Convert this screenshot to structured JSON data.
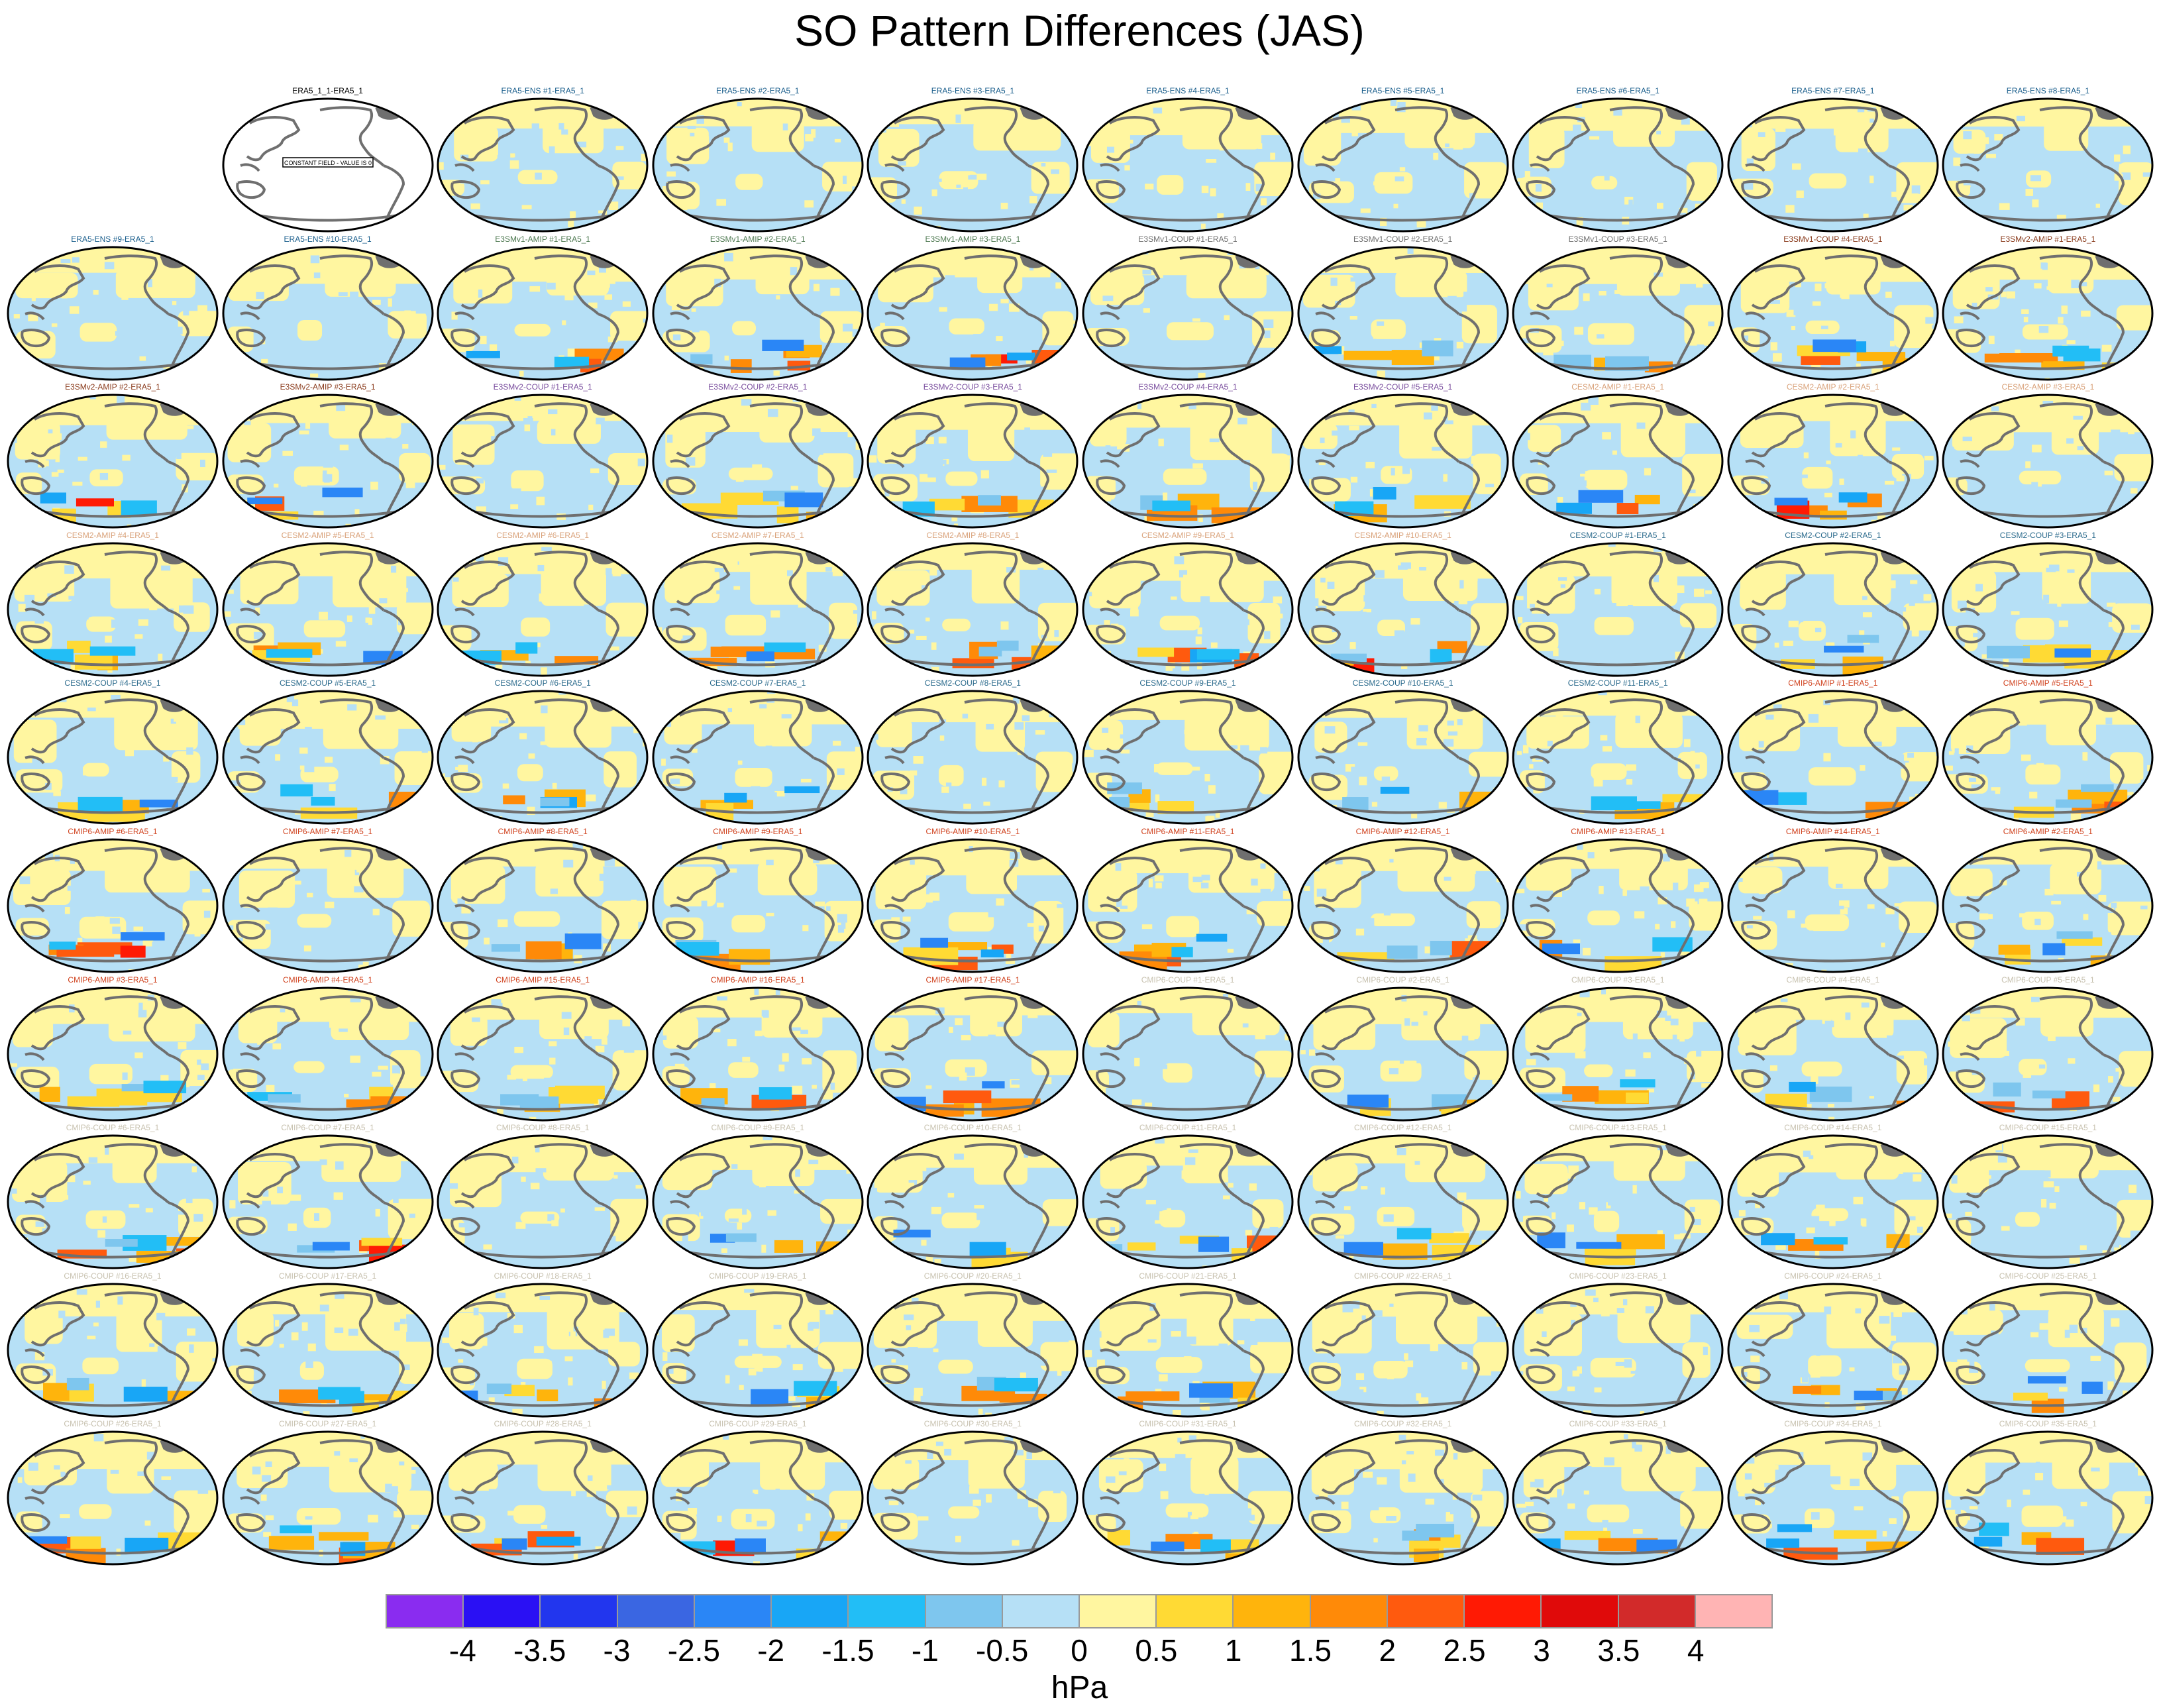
{
  "title": "SO Pattern Differences (JAS)",
  "units": "hPa",
  "colorbar": {
    "labels": [
      "-4",
      "-3.5",
      "-3",
      "-2.5",
      "-2",
      "-1.5",
      "-1",
      "-0.5",
      "0",
      "0.5",
      "1",
      "1.5",
      "2",
      "2.5",
      "3",
      "3.5",
      "4"
    ],
    "colors": [
      "#8a2cf0",
      "#2a10f4",
      "#2236ee",
      "#3a66e2",
      "#2a86f6",
      "#18a6f6",
      "#22bef6",
      "#7ec6ee",
      "#b6e0f6",
      "#fff6a0",
      "#ffda34",
      "#ffb40c",
      "#ff8a08",
      "#ff5a0e",
      "#ff1a04",
      "#e00a0a",
      "#d22a2a",
      "#ffb4b4"
    ]
  },
  "group_colors": {
    "ERA5_1": "#000000",
    "ERA5-ENS": "#1a5e8c",
    "E3SMv1-AMIP": "#4f7a52",
    "E3SMv1-COUP": "#6f6f6f",
    "E3SMv1-COUP-b": "#8a3b1c",
    "E3SMv2-AMIP": "#8a3b1c",
    "E3SMv2-COUP": "#7a4e9e",
    "CESM2-AMIP": "#d9a27a",
    "CESM2-COUP": "#2a6a8c",
    "CMIP6-AMIP": "#d0421e",
    "CMIP6-COUP": "#c8c2b0"
  },
  "panels": [
    {
      "title": "ERA5_1_1-ERA5_1",
      "group": "ERA5_1",
      "note": "CONSTANT FIELD - VALUE IS 0"
    },
    {
      "title": "ERA5-ENS    #1-ERA5_1",
      "group": "ERA5-ENS"
    },
    {
      "title": "ERA5-ENS    #2-ERA5_1",
      "group": "ERA5-ENS"
    },
    {
      "title": "ERA5-ENS    #3-ERA5_1",
      "group": "ERA5-ENS"
    },
    {
      "title": "ERA5-ENS    #4-ERA5_1",
      "group": "ERA5-ENS"
    },
    {
      "title": "ERA5-ENS    #5-ERA5_1",
      "group": "ERA5-ENS"
    },
    {
      "title": "ERA5-ENS    #6-ERA5_1",
      "group": "ERA5-ENS"
    },
    {
      "title": "ERA5-ENS    #7-ERA5_1",
      "group": "ERA5-ENS"
    },
    {
      "title": "ERA5-ENS    #8-ERA5_1",
      "group": "ERA5-ENS"
    },
    {
      "title": "ERA5-ENS    #9-ERA5_1",
      "group": "ERA5-ENS"
    },
    {
      "title": "ERA5-ENS    #10-ERA5_1",
      "group": "ERA5-ENS"
    },
    {
      "title": "E3SMv1-AMIP #1-ERA5_1",
      "group": "E3SMv1-AMIP"
    },
    {
      "title": "E3SMv1-AMIP #2-ERA5_1",
      "group": "E3SMv1-AMIP"
    },
    {
      "title": "E3SMv1-AMIP #3-ERA5_1",
      "group": "E3SMv1-AMIP"
    },
    {
      "title": "E3SMv1-COUP #1-ERA5_1",
      "group": "E3SMv1-COUP"
    },
    {
      "title": "E3SMv1-COUP #2-ERA5_1",
      "group": "E3SMv1-COUP"
    },
    {
      "title": "E3SMv1-COUP #3-ERA5_1",
      "group": "E3SMv1-COUP"
    },
    {
      "title": "E3SMv1-COUP #4-ERA5_1",
      "group": "E3SMv1-COUP-b"
    },
    {
      "title": "E3SMv2-AMIP #1-ERA5_1",
      "group": "E3SMv2-AMIP"
    },
    {
      "title": "E3SMv2-AMIP #2-ERA5_1",
      "group": "E3SMv2-AMIP"
    },
    {
      "title": "E3SMv2-AMIP #3-ERA5_1",
      "group": "E3SMv2-AMIP"
    },
    {
      "title": "E3SMv2-COUP #1-ERA5_1",
      "group": "E3SMv2-COUP"
    },
    {
      "title": "E3SMv2-COUP #2-ERA5_1",
      "group": "E3SMv2-COUP"
    },
    {
      "title": "E3SMv2-COUP #3-ERA5_1",
      "group": "E3SMv2-COUP"
    },
    {
      "title": "E3SMv2-COUP #4-ERA5_1",
      "group": "E3SMv2-COUP"
    },
    {
      "title": "E3SMv2-COUP #5-ERA5_1",
      "group": "E3SMv2-COUP"
    },
    {
      "title": "CESM2-AMIP  #1-ERA5_1",
      "group": "CESM2-AMIP"
    },
    {
      "title": "CESM2-AMIP  #2-ERA5_1",
      "group": "CESM2-AMIP"
    },
    {
      "title": "CESM2-AMIP  #3-ERA5_1",
      "group": "CESM2-AMIP"
    },
    {
      "title": "CESM2-AMIP  #4-ERA5_1",
      "group": "CESM2-AMIP"
    },
    {
      "title": "CESM2-AMIP  #5-ERA5_1",
      "group": "CESM2-AMIP"
    },
    {
      "title": "CESM2-AMIP  #6-ERA5_1",
      "group": "CESM2-AMIP"
    },
    {
      "title": "CESM2-AMIP  #7-ERA5_1",
      "group": "CESM2-AMIP"
    },
    {
      "title": "CESM2-AMIP  #8-ERA5_1",
      "group": "CESM2-AMIP"
    },
    {
      "title": "CESM2-AMIP  #9-ERA5_1",
      "group": "CESM2-AMIP"
    },
    {
      "title": "CESM2-AMIP  #10-ERA5_1",
      "group": "CESM2-AMIP"
    },
    {
      "title": "CESM2-COUP  #1-ERA5_1",
      "group": "CESM2-COUP"
    },
    {
      "title": "CESM2-COUP  #2-ERA5_1",
      "group": "CESM2-COUP"
    },
    {
      "title": "CESM2-COUP  #3-ERA5_1",
      "group": "CESM2-COUP"
    },
    {
      "title": "CESM2-COUP  #4-ERA5_1",
      "group": "CESM2-COUP"
    },
    {
      "title": "CESM2-COUP  #5-ERA5_1",
      "group": "CESM2-COUP"
    },
    {
      "title": "CESM2-COUP  #6-ERA5_1",
      "group": "CESM2-COUP"
    },
    {
      "title": "CESM2-COUP  #7-ERA5_1",
      "group": "CESM2-COUP"
    },
    {
      "title": "CESM2-COUP  #8-ERA5_1",
      "group": "CESM2-COUP"
    },
    {
      "title": "CESM2-COUP  #9-ERA5_1",
      "group": "CESM2-COUP"
    },
    {
      "title": "CESM2-COUP  #10-ERA5_1",
      "group": "CESM2-COUP"
    },
    {
      "title": "CESM2-COUP  #11-ERA5_1",
      "group": "CESM2-COUP"
    },
    {
      "title": "CMIP6-AMIP  #1-ERA5_1",
      "group": "CMIP6-AMIP"
    },
    {
      "title": "CMIP6-AMIP  #5-ERA5_1",
      "group": "CMIP6-AMIP"
    },
    {
      "title": "CMIP6-AMIP  #6-ERA5_1",
      "group": "CMIP6-AMIP"
    },
    {
      "title": "CMIP6-AMIP  #7-ERA5_1",
      "group": "CMIP6-AMIP"
    },
    {
      "title": "CMIP6-AMIP  #8-ERA5_1",
      "group": "CMIP6-AMIP"
    },
    {
      "title": "CMIP6-AMIP  #9-ERA5_1",
      "group": "CMIP6-AMIP"
    },
    {
      "title": "CMIP6-AMIP  #10-ERA5_1",
      "group": "CMIP6-AMIP"
    },
    {
      "title": "CMIP6-AMIP  #11-ERA5_1",
      "group": "CMIP6-AMIP"
    },
    {
      "title": "CMIP6-AMIP  #12-ERA5_1",
      "group": "CMIP6-AMIP"
    },
    {
      "title": "CMIP6-AMIP  #13-ERA5_1",
      "group": "CMIP6-AMIP"
    },
    {
      "title": "CMIP6-AMIP  #14-ERA5_1",
      "group": "CMIP6-AMIP"
    },
    {
      "title": "CMIP6-AMIP  #2-ERA5_1",
      "group": "CMIP6-AMIP"
    },
    {
      "title": "CMIP6-AMIP  #3-ERA5_1",
      "group": "CMIP6-AMIP"
    },
    {
      "title": "CMIP6-AMIP  #4-ERA5_1",
      "group": "CMIP6-AMIP"
    },
    {
      "title": "CMIP6-AMIP  #15-ERA5_1",
      "group": "CMIP6-AMIP"
    },
    {
      "title": "CMIP6-AMIP  #16-ERA5_1",
      "group": "CMIP6-AMIP"
    },
    {
      "title": "CMIP6-AMIP  #17-ERA5_1",
      "group": "CMIP6-AMIP"
    },
    {
      "title": "CMIP6-COUP  #1-ERA5_1",
      "group": "CMIP6-COUP"
    },
    {
      "title": "CMIP6-COUP  #2-ERA5_1",
      "group": "CMIP6-COUP"
    },
    {
      "title": "CMIP6-COUP  #3-ERA5_1",
      "group": "CMIP6-COUP"
    },
    {
      "title": "CMIP6-COUP  #4-ERA5_1",
      "group": "CMIP6-COUP"
    },
    {
      "title": "CMIP6-COUP  #5-ERA5_1",
      "group": "CMIP6-COUP"
    },
    {
      "title": "CMIP6-COUP  #6-ERA5_1",
      "group": "CMIP6-COUP"
    },
    {
      "title": "CMIP6-COUP  #7-ERA5_1",
      "group": "CMIP6-COUP"
    },
    {
      "title": "CMIP6-COUP  #8-ERA5_1",
      "group": "CMIP6-COUP"
    },
    {
      "title": "CMIP6-COUP  #9-ERA5_1",
      "group": "CMIP6-COUP"
    },
    {
      "title": "CMIP6-COUP  #10-ERA5_1",
      "group": "CMIP6-COUP"
    },
    {
      "title": "CMIP6-COUP  #11-ERA5_1",
      "group": "CMIP6-COUP"
    },
    {
      "title": "CMIP6-COUP  #12-ERA5_1",
      "group": "CMIP6-COUP"
    },
    {
      "title": "CMIP6-COUP  #13-ERA5_1",
      "group": "CMIP6-COUP"
    },
    {
      "title": "CMIP6-COUP  #14-ERA5_1",
      "group": "CMIP6-COUP"
    },
    {
      "title": "CMIP6-COUP  #15-ERA5_1",
      "group": "CMIP6-COUP"
    },
    {
      "title": "CMIP6-COUP  #16-ERA5_1",
      "group": "CMIP6-COUP"
    },
    {
      "title": "CMIP6-COUP  #17-ERA5_1",
      "group": "CMIP6-COUP"
    },
    {
      "title": "CMIP6-COUP  #18-ERA5_1",
      "group": "CMIP6-COUP"
    },
    {
      "title": "CMIP6-COUP  #19-ERA5_1",
      "group": "CMIP6-COUP"
    },
    {
      "title": "CMIP6-COUP  #20-ERA5_1",
      "group": "CMIP6-COUP"
    },
    {
      "title": "CMIP6-COUP  #21-ERA5_1",
      "group": "CMIP6-COUP"
    },
    {
      "title": "CMIP6-COUP  #22-ERA5_1",
      "group": "CMIP6-COUP"
    },
    {
      "title": "CMIP6-COUP  #23-ERA5_1",
      "group": "CMIP6-COUP"
    },
    {
      "title": "CMIP6-COUP  #24-ERA5_1",
      "group": "CMIP6-COUP"
    },
    {
      "title": "CMIP6-COUP  #25-ERA5_1",
      "group": "CMIP6-COUP"
    },
    {
      "title": "CMIP6-COUP  #26-ERA5_1",
      "group": "CMIP6-COUP"
    },
    {
      "title": "CMIP6-COUP  #27-ERA5_1",
      "group": "CMIP6-COUP"
    },
    {
      "title": "CMIP6-COUP  #28-ERA5_1",
      "group": "CMIP6-COUP"
    },
    {
      "title": "CMIP6-COUP  #29-ERA5_1",
      "group": "CMIP6-COUP"
    },
    {
      "title": "CMIP6-COUP  #30-ERA5_1",
      "group": "CMIP6-COUP"
    },
    {
      "title": "CMIP6-COUP  #31-ERA5_1",
      "group": "CMIP6-COUP"
    },
    {
      "title": "CMIP6-COUP  #32-ERA5_1",
      "group": "CMIP6-COUP"
    },
    {
      "title": "CMIP6-COUP  #33-ERA5_1",
      "group": "CMIP6-COUP"
    },
    {
      "title": "CMIP6-COUP  #34-ERA5_1",
      "group": "CMIP6-COUP"
    },
    {
      "title": "CMIP6-COUP  #35-ERA5_1",
      "group": "CMIP6-COUP"
    }
  ]
}
